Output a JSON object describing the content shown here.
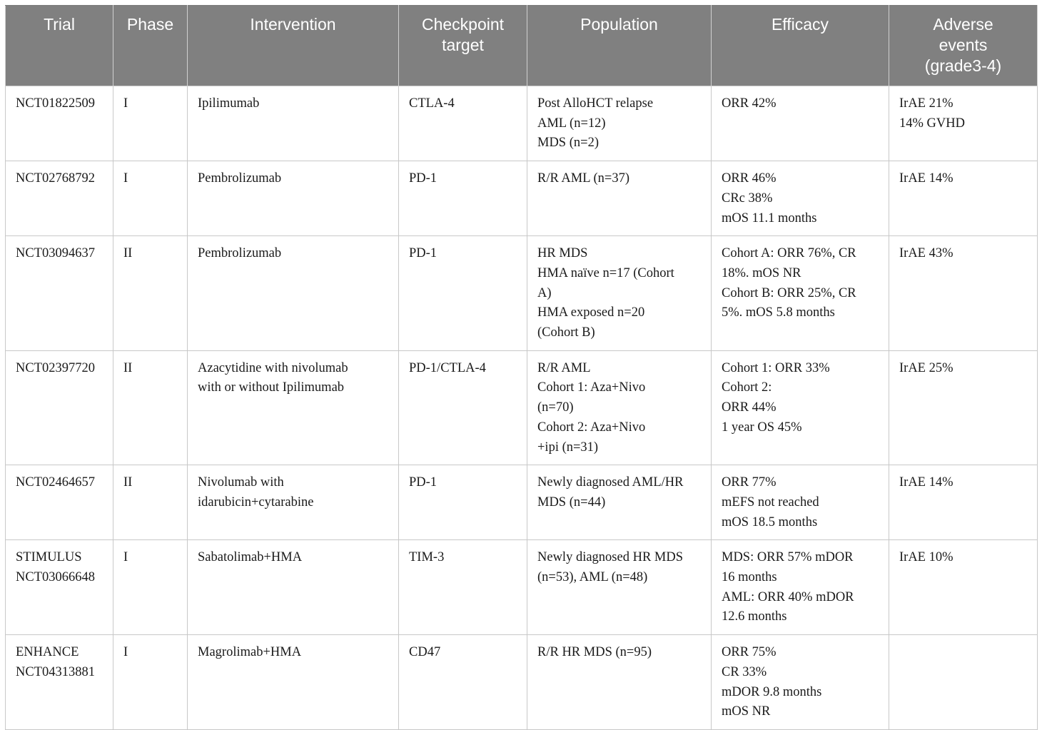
{
  "table": {
    "headers": [
      "Trial",
      "Phase",
      "Intervention",
      "Checkpoint\ntarget",
      "Population",
      "Efficacy",
      "Adverse\nevents\n(grade3-4)"
    ],
    "rows": [
      {
        "trial": [
          "NCT01822509"
        ],
        "phase": "I",
        "intervention": [
          "Ipilimumab"
        ],
        "target": "CTLA-4",
        "population": [
          "Post AlloHCT relapse",
          "AML (n=12)",
          "MDS (n=2)"
        ],
        "efficacy": [
          "ORR 42%"
        ],
        "adverse": [
          "IrAE 21%",
          "14% GVHD"
        ]
      },
      {
        "trial": [
          "NCT02768792"
        ],
        "phase": "I",
        "intervention": [
          "Pembrolizumab"
        ],
        "target": "PD-1",
        "population": [
          "R/R AML (n=37)"
        ],
        "efficacy": [
          "ORR 46%",
          "CRc 38%",
          "mOS 11.1 months"
        ],
        "adverse": [
          "IrAE 14%"
        ]
      },
      {
        "trial": [
          "NCT03094637"
        ],
        "phase": "II",
        "intervention": [
          "Pembrolizumab"
        ],
        "target": "PD-1",
        "population": [
          "HR MDS",
          "HMA naïve n=17 (Cohort",
          "A)",
          "HMA exposed n=20",
          "(Cohort B)"
        ],
        "efficacy": [
          "Cohort A: ORR 76%, CR",
          "18%. mOS NR",
          "Cohort B: ORR 25%, CR",
          "5%. mOS 5.8 months"
        ],
        "adverse": [
          "IrAE 43%"
        ]
      },
      {
        "trial": [
          "NCT02397720"
        ],
        "phase": "II",
        "intervention": [
          "Azacytidine with nivolumab",
          "with or without Ipilimumab"
        ],
        "target": "PD-1/CTLA-4",
        "population": [
          "R/R AML",
          "Cohort 1: Aza+Nivo",
          "(n=70)",
          "Cohort 2: Aza+Nivo",
          "+ipi (n=31)"
        ],
        "efficacy": [
          "Cohort 1: ORR 33%",
          "Cohort 2:",
          "ORR 44%",
          "1 year OS 45%"
        ],
        "adverse": [
          "IrAE 25%"
        ]
      },
      {
        "trial": [
          "NCT02464657"
        ],
        "phase": "II",
        "intervention": [
          "Nivolumab with",
          "idarubicin+cytarabine"
        ],
        "target": "PD-1",
        "population": [
          "Newly diagnosed AML/HR",
          "MDS (n=44)"
        ],
        "efficacy": [
          "ORR 77%",
          "mEFS not reached",
          "mOS 18.5 months"
        ],
        "adverse": [
          "IrAE 14%"
        ]
      },
      {
        "trial": [
          "STIMULUS",
          "NCT03066648"
        ],
        "phase": "I",
        "intervention": [
          "Sabatolimab+HMA"
        ],
        "target": "TIM-3",
        "population": [
          "Newly diagnosed HR MDS",
          "(n=53), AML (n=48)"
        ],
        "efficacy": [
          "MDS: ORR 57% mDOR",
          "16 months",
          "AML: ORR 40% mDOR",
          "12.6 months"
        ],
        "adverse": [
          "IrAE 10%"
        ]
      },
      {
        "trial": [
          "ENHANCE",
          "NCT04313881"
        ],
        "phase": "I",
        "intervention": [
          "Magrolimab+HMA"
        ],
        "target": "CD47",
        "population": [
          "R/R HR MDS (n=95)"
        ],
        "efficacy": [
          "ORR 75%",
          "CR 33%",
          "mDOR 9.8 months",
          "mOS NR"
        ],
        "adverse": []
      }
    ]
  }
}
